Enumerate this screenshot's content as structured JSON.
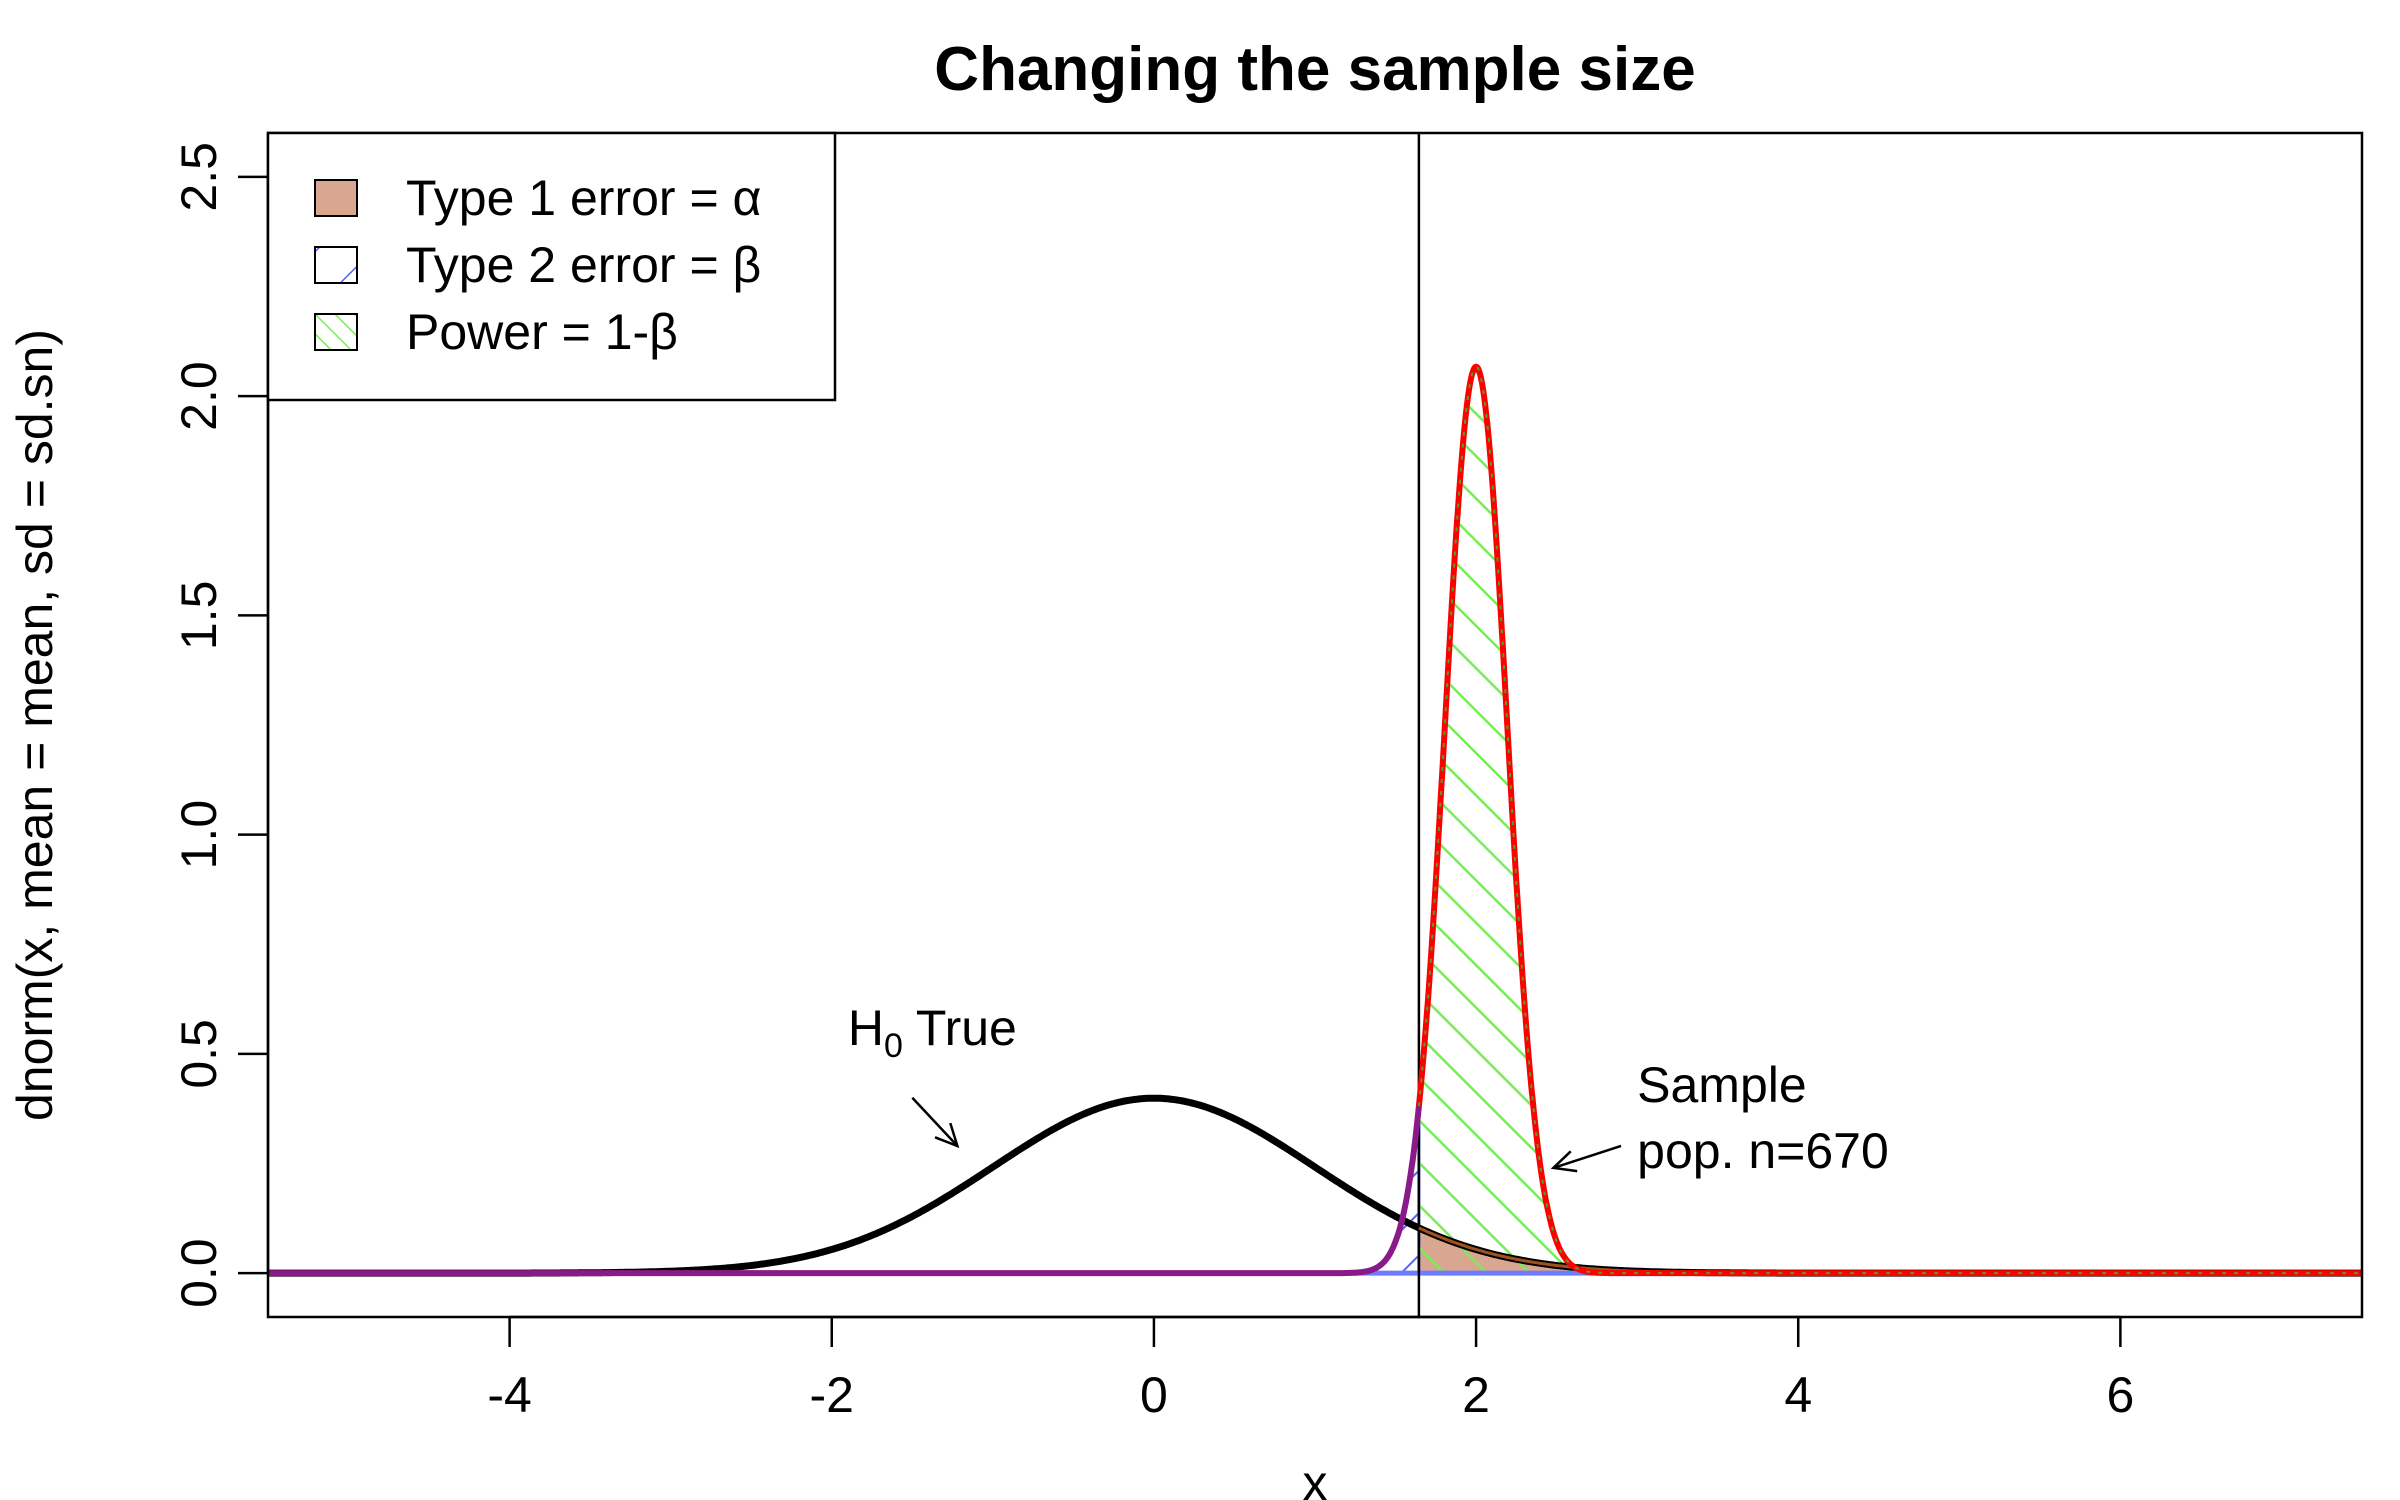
{
  "chart_data": {
    "type": "line",
    "title": "Changing the sample size",
    "xlabel": "x",
    "ylabel": "dnorm(x, mean = mean, sd = sd.sn)",
    "xlim": [
      -5.5,
      7.5
    ],
    "ylim": [
      -0.1,
      2.6
    ],
    "xticks": [
      -4,
      -2,
      0,
      2,
      4,
      6
    ],
    "yticks": [
      0.0,
      0.5,
      1.0,
      1.5,
      2.0,
      2.5
    ],
    "ytick_labels": [
      "0.0",
      "0.5",
      "1.0",
      "1.5",
      "2.0",
      "2.5"
    ],
    "critical_value": 1.645,
    "series": [
      {
        "mean": 0,
        "sd": 1,
        "color": "#000000"
      },
      {
        "mean": 2,
        "sd": 0.193,
        "color": "#ff0000"
      }
    ],
    "regions": {
      "type1_color": "#d9a690",
      "type2_color": "#5566ee",
      "power_color": "#77ee55"
    },
    "legend": {
      "position": "top-left",
      "entries": [
        {
          "label": "Type 1 error = α",
          "style": "solid",
          "color": "#d9a690"
        },
        {
          "label": "Type 2 error = β",
          "style": "hatch",
          "color": "#5566ee"
        },
        {
          "label": "Power = 1-β",
          "style": "hatch",
          "color": "#77ee55"
        }
      ]
    },
    "annotations": {
      "h0": {
        "main": "H",
        "sub": "0",
        "rest": " True",
        "x": -1.9,
        "y": 0.52,
        "arrow_from": [
          -1.5,
          0.4
        ],
        "arrow_to": [
          -1.22,
          0.29
        ]
      },
      "sample": {
        "line1": "Sample",
        "line2": "pop. n=670",
        "x": 3.0,
        "arrow_from": [
          2.9,
          0.29
        ],
        "arrow_to": [
          2.48,
          0.24
        ]
      }
    }
  }
}
